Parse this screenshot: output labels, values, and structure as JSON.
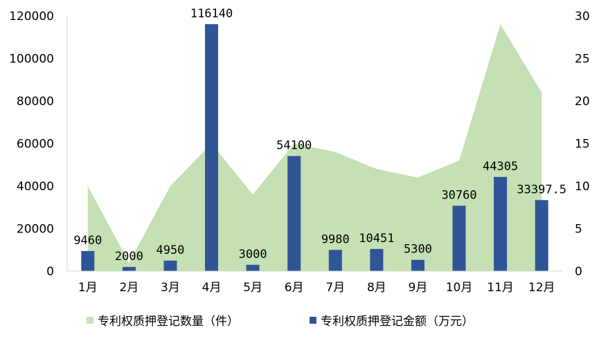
{
  "chart_data": {
    "type": "bar",
    "categories": [
      "1月",
      "2月",
      "3月",
      "4月",
      "5月",
      "6月",
      "7月",
      "8月",
      "9月",
      "10月",
      "11月",
      "12月"
    ],
    "series": [
      {
        "name": "专利权质押登记数量（件）",
        "type": "area",
        "axis": "right",
        "color": "#c5e0b4",
        "values": [
          10,
          1,
          10,
          15,
          9,
          15,
          14,
          12,
          11,
          13,
          29,
          21
        ]
      },
      {
        "name": "专利权质押登记金额（万元）",
        "type": "bar",
        "axis": "left",
        "color": "#2f5597",
        "values": [
          9460,
          2000,
          4950,
          116140,
          3000,
          54100,
          9980,
          10451,
          5300,
          30760,
          44305,
          33397.5
        ],
        "labels": [
          "9460",
          "2000",
          "4950",
          "116140",
          "3000",
          "54100",
          "9980",
          "10451",
          "5300",
          "30760",
          "44305",
          "33397.5"
        ]
      }
    ],
    "y_left": {
      "min": 0,
      "max": 120000,
      "ticks": [
        "0",
        "20000",
        "40000",
        "60000",
        "80000",
        "100000",
        "120000"
      ]
    },
    "y_right": {
      "min": 0,
      "max": 30,
      "ticks": [
        "0",
        "5",
        "10",
        "15",
        "20",
        "25",
        "30"
      ]
    },
    "legend_position": "bottom",
    "grid": false
  }
}
